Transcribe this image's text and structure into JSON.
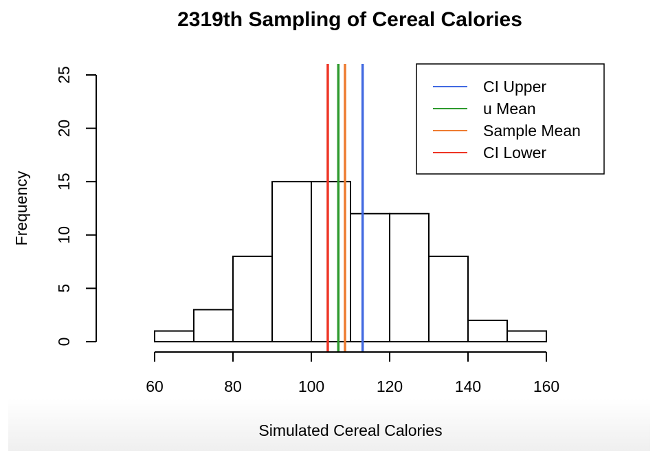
{
  "chart_data": {
    "type": "bar",
    "title": "2319th Sampling of Cereal Calories",
    "xlabel": "Simulated Cereal Calories",
    "ylabel": "Frequency",
    "xlim": [
      60,
      160
    ],
    "ylim": [
      0,
      25
    ],
    "x_ticks": [
      "60",
      "80",
      "100",
      "120",
      "140",
      "160"
    ],
    "y_ticks": [
      "0",
      "5",
      "10",
      "15",
      "20",
      "25"
    ],
    "bins": [
      {
        "from": 60,
        "to": 70,
        "count": 1
      },
      {
        "from": 70,
        "to": 80,
        "count": 3
      },
      {
        "from": 80,
        "to": 90,
        "count": 8
      },
      {
        "from": 90,
        "to": 100,
        "count": 15
      },
      {
        "from": 100,
        "to": 110,
        "count": 15
      },
      {
        "from": 110,
        "to": 120,
        "count": 12
      },
      {
        "from": 120,
        "to": 130,
        "count": 12
      },
      {
        "from": 130,
        "to": 140,
        "count": 8
      },
      {
        "from": 140,
        "to": 150,
        "count": 2
      },
      {
        "from": 150,
        "to": 160,
        "count": 1
      }
    ],
    "vlines": [
      {
        "name": "CI Upper",
        "x": 113.1,
        "color": "#4169e1"
      },
      {
        "name": "u Mean",
        "x": 106.9,
        "color": "#2e9a2e"
      },
      {
        "name": "Sample Mean",
        "x": 108.6,
        "color": "#ee7b30"
      },
      {
        "name": "CI Lower",
        "x": 104.2,
        "color": "#ee3424"
      }
    ],
    "legend": [
      "CI Upper",
      "u Mean",
      "Sample Mean",
      "CI Lower"
    ],
    "legend_position": "top-right",
    "grid": false
  }
}
